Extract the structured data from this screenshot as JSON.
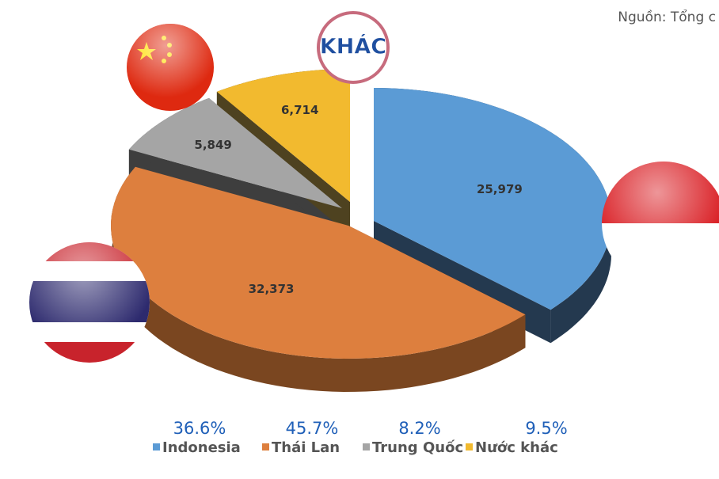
{
  "source": "Nguồn: Tổng c",
  "badge": "KHÁC",
  "chart_data": {
    "type": "pie",
    "categories": [
      "Indonesia",
      "Thái Lan",
      "Trung Quốc",
      "Nước khác"
    ],
    "values": [
      25979,
      32373,
      5849,
      6714
    ],
    "value_labels": [
      "25,979",
      "32,373",
      "5,849",
      "6,714"
    ],
    "percent_labels": [
      "36.6%",
      "45.7%",
      "8.2%",
      "9.5%"
    ],
    "colors": [
      "#5b9bd5",
      "#dd7f3e",
      "#a5a5a5",
      "#f2ba2f"
    ],
    "side_colors": [
      "#24394f",
      "#7a4620",
      "#3e3e3e",
      "#4e4220"
    ],
    "legend": "bottom"
  }
}
